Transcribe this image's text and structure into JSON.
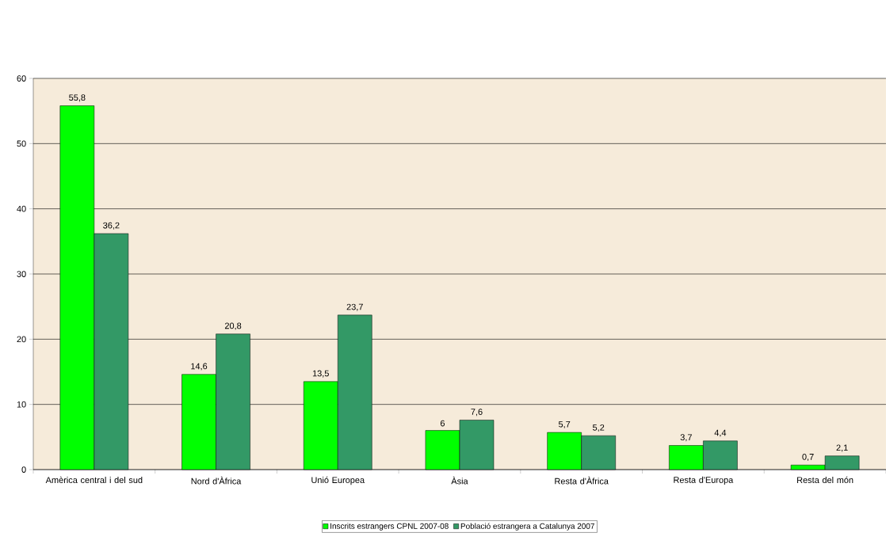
{
  "chart_data": {
    "type": "bar",
    "categories": [
      "Amèrica central i del sud",
      "Nord d'Àfrica",
      "Unió Europea",
      "Àsia",
      "Resta d'Àfrica",
      "Resta d'Europa",
      "Resta del món"
    ],
    "series": [
      {
        "name": "Inscrits estrangers CPNL 2007-08",
        "color": "#00ff00",
        "values": [
          55.8,
          14.6,
          13.5,
          6,
          5.7,
          3.7,
          0.7
        ],
        "value_labels": [
          "55,8",
          "14,6",
          "13,5",
          "6",
          "5,7",
          "3,7",
          "0,7"
        ]
      },
      {
        "name": "Població estrangera a Catalunya 2007",
        "color": "#339966",
        "values": [
          36.2,
          20.8,
          23.7,
          7.6,
          5.2,
          4.4,
          2.1
        ],
        "value_labels": [
          "36,2",
          "20,8",
          "23,7",
          "7,6",
          "5,2",
          "4,4",
          "2,1"
        ]
      }
    ],
    "ylim": [
      0,
      60
    ],
    "yticks": [
      0,
      10,
      20,
      30,
      40,
      50,
      60
    ],
    "grid": "y",
    "legend": "bottom"
  }
}
